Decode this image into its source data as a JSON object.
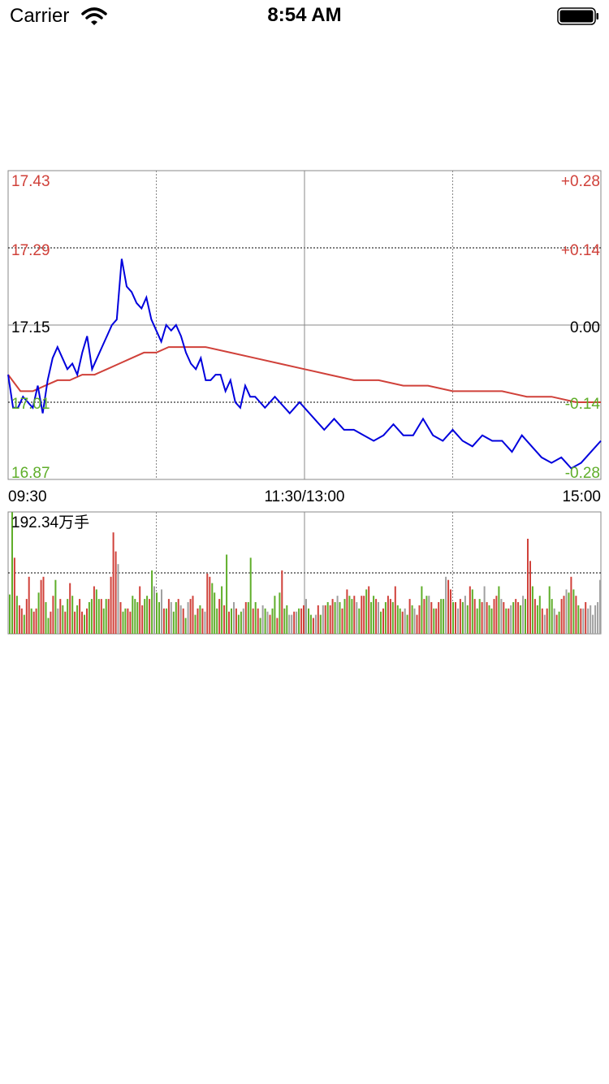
{
  "status_bar": {
    "carrier": "Carrier",
    "time": "8:54 AM",
    "wifi_icon": "wifi-icon",
    "battery_icon": "battery-icon"
  },
  "colors": {
    "price_line": "#0000dd",
    "avg_line": "#d0413a",
    "up": "#d0413a",
    "down": "#5fae2a",
    "flat": "#a0a0a0",
    "grid": "#888888",
    "neutral": "#000000"
  },
  "chart_data": [
    {
      "type": "line",
      "description_of_axes": "intraday price",
      "y_left_labels": [
        "17.43",
        "17.29",
        "17.15",
        "17.01",
        "16.87"
      ],
      "y_right_labels": [
        "+0.28",
        "+0.14",
        "0.00",
        "-0.14",
        "-0.28"
      ],
      "x_labels": [
        "09:30",
        "11:30/13:00",
        "15:00"
      ],
      "ylim": [
        16.87,
        17.43
      ],
      "reference_price": 17.15,
      "x_range": [
        0,
        240
      ],
      "series": [
        {
          "role": "price",
          "x": [
            0,
            2,
            4,
            6,
            8,
            10,
            12,
            14,
            16,
            18,
            20,
            22,
            24,
            26,
            28,
            30,
            32,
            34,
            36,
            38,
            40,
            42,
            44,
            46,
            48,
            50,
            52,
            54,
            56,
            58,
            60,
            62,
            64,
            66,
            68,
            70,
            72,
            74,
            76,
            78,
            80,
            82,
            84,
            86,
            88,
            90,
            92,
            94,
            96,
            98,
            100,
            102,
            104,
            106,
            108,
            110,
            112,
            114,
            116,
            118,
            120,
            124,
            128,
            132,
            136,
            140,
            144,
            148,
            152,
            156,
            160,
            164,
            168,
            172,
            176,
            180,
            184,
            188,
            192,
            196,
            200,
            204,
            208,
            212,
            216,
            220,
            224,
            228,
            232,
            236,
            240
          ],
          "values": [
            17.06,
            17.0,
            17.0,
            17.02,
            17.01,
            17.0,
            17.04,
            16.99,
            17.05,
            17.09,
            17.11,
            17.09,
            17.07,
            17.08,
            17.06,
            17.1,
            17.13,
            17.07,
            17.09,
            17.11,
            17.13,
            17.15,
            17.16,
            17.27,
            17.22,
            17.21,
            17.19,
            17.18,
            17.2,
            17.16,
            17.14,
            17.12,
            17.15,
            17.14,
            17.15,
            17.13,
            17.1,
            17.08,
            17.07,
            17.09,
            17.05,
            17.05,
            17.06,
            17.06,
            17.03,
            17.05,
            17.01,
            17.0,
            17.04,
            17.02,
            17.02,
            17.01,
            17.0,
            17.01,
            17.02,
            17.01,
            17.0,
            16.99,
            17.0,
            17.01,
            17.0,
            16.98,
            16.96,
            16.98,
            16.96,
            16.96,
            16.95,
            16.94,
            16.95,
            16.97,
            16.95,
            16.95,
            16.98,
            16.95,
            16.94,
            16.96,
            16.94,
            16.93,
            16.95,
            16.94,
            16.94,
            16.92,
            16.95,
            16.93,
            16.91,
            16.9,
            16.91,
            16.89,
            16.9,
            16.92,
            16.94
          ]
        },
        {
          "role": "average",
          "x": [
            0,
            5,
            10,
            15,
            20,
            25,
            30,
            35,
            40,
            45,
            50,
            55,
            60,
            65,
            70,
            75,
            80,
            90,
            100,
            110,
            120,
            130,
            140,
            150,
            160,
            170,
            180,
            190,
            200,
            210,
            220,
            230,
            240
          ],
          "values": [
            17.06,
            17.03,
            17.03,
            17.04,
            17.05,
            17.05,
            17.06,
            17.06,
            17.07,
            17.08,
            17.09,
            17.1,
            17.1,
            17.11,
            17.11,
            17.11,
            17.11,
            17.1,
            17.09,
            17.08,
            17.07,
            17.06,
            17.05,
            17.05,
            17.04,
            17.04,
            17.03,
            17.03,
            17.03,
            17.02,
            17.02,
            17.01,
            17.01
          ]
        }
      ]
    },
    {
      "type": "bar",
      "description_of_axes": "intraday volume",
      "max_label": "192.34万手",
      "ylim": [
        0,
        192.34
      ],
      "x_range": [
        0,
        240
      ],
      "values": [
        62,
        192,
        120,
        60,
        45,
        40,
        30,
        55,
        90,
        40,
        35,
        40,
        65,
        85,
        90,
        50,
        25,
        35,
        60,
        85,
        40,
        55,
        45,
        35,
        55,
        80,
        60,
        35,
        45,
        55,
        35,
        30,
        40,
        50,
        55,
        75,
        70,
        55,
        55,
        40,
        55,
        55,
        90,
        160,
        130,
        110,
        50,
        35,
        40,
        40,
        35,
        60,
        55,
        50,
        75,
        45,
        55,
        60,
        55,
        100,
        75,
        65,
        50,
        70,
        40,
        40,
        55,
        50,
        35,
        50,
        55,
        45,
        40,
        25,
        50,
        55,
        60,
        30,
        40,
        45,
        40,
        35,
        95,
        90,
        80,
        65,
        40,
        55,
        75,
        45,
        125,
        35,
        40,
        50,
        40,
        30,
        35,
        40,
        50,
        50,
        120,
        40,
        50,
        40,
        25,
        45,
        40,
        35,
        30,
        40,
        60,
        25,
        65,
        100,
        40,
        45,
        30,
        30,
        35,
        35,
        40,
        40,
        45,
        55,
        40,
        30,
        25,
        30,
        45,
        30,
        45,
        45,
        50,
        45,
        55,
        50,
        60,
        50,
        40,
        55,
        70,
        60,
        55,
        60,
        50,
        40,
        60,
        60,
        70,
        75,
        50,
        60,
        55,
        50,
        35,
        40,
        50,
        60,
        55,
        50,
        75,
        45,
        40,
        35,
        40,
        30,
        55,
        45,
        40,
        30,
        45,
        75,
        55,
        60,
        60,
        50,
        40,
        40,
        50,
        55,
        55,
        90,
        85,
        70,
        50,
        50,
        40,
        55,
        50,
        60,
        45,
        75,
        70,
        55,
        40,
        55,
        50,
        75,
        50,
        45,
        40,
        55,
        60,
        75,
        55,
        50,
        40,
        40,
        45,
        50,
        55,
        50,
        45,
        60,
        55,
        150,
        115,
        75,
        55,
        45,
        60,
        40,
        30,
        40,
        75,
        55,
        40,
        30,
        35,
        55,
        60,
        70,
        65,
        90,
        70,
        60,
        45,
        40,
        40,
        50,
        40,
        45,
        30,
        45,
        50,
        85
      ],
      "directions": [
        "down",
        "down",
        "up",
        "down",
        "up",
        "up",
        "down",
        "up",
        "up",
        "down",
        "up",
        "up",
        "down",
        "up",
        "up",
        "down",
        "down",
        "up",
        "up",
        "down",
        "flat",
        "up",
        "down",
        "up",
        "down",
        "up",
        "down",
        "up",
        "down",
        "up",
        "up",
        "down",
        "up",
        "down",
        "down",
        "up",
        "down",
        "down",
        "up",
        "down",
        "down",
        "up",
        "up",
        "up",
        "up",
        "flat",
        "up",
        "down",
        "down",
        "up",
        "up",
        "down",
        "down",
        "down",
        "up",
        "up",
        "down",
        "down",
        "up",
        "down",
        "flat",
        "down",
        "down",
        "flat",
        "up",
        "down",
        "up",
        "flat",
        "down",
        "down",
        "up",
        "flat",
        "up",
        "down",
        "flat",
        "up",
        "up",
        "down",
        "up",
        "down",
        "up",
        "flat",
        "up",
        "up",
        "down",
        "down",
        "down",
        "up",
        "down",
        "up",
        "down",
        "up",
        "down",
        "flat",
        "up",
        "down",
        "down",
        "flat",
        "up",
        "down",
        "down",
        "up",
        "down",
        "up",
        "down",
        "flat",
        "down",
        "flat",
        "up",
        "down",
        "down",
        "up",
        "down",
        "up",
        "down",
        "down",
        "flat",
        "flat",
        "up",
        "flat",
        "down",
        "up",
        "up",
        "flat",
        "down",
        "down",
        "up",
        "flat",
        "up",
        "down",
        "flat",
        "up",
        "down",
        "up",
        "up",
        "down",
        "flat",
        "down",
        "up",
        "down",
        "up",
        "down",
        "down",
        "up",
        "flat",
        "down",
        "up",
        "up",
        "down",
        "up",
        "down",
        "down",
        "up",
        "flat",
        "down",
        "up",
        "down",
        "up",
        "up",
        "down",
        "up",
        "down",
        "down",
        "up",
        "flat",
        "down",
        "up",
        "down",
        "flat",
        "up",
        "up",
        "down",
        "up",
        "down",
        "flat",
        "up",
        "down",
        "up",
        "up",
        "down",
        "down",
        "flat",
        "up",
        "up",
        "down",
        "up",
        "flat",
        "up",
        "down",
        "flat",
        "down",
        "up",
        "down",
        "up",
        "down",
        "down",
        "up",
        "flat",
        "up",
        "down",
        "down",
        "up",
        "up",
        "down",
        "flat",
        "up",
        "down",
        "up",
        "flat",
        "down",
        "up",
        "up",
        "down",
        "flat",
        "down",
        "up",
        "up",
        "down",
        "up",
        "down",
        "down",
        "up",
        "flat",
        "up",
        "down",
        "down",
        "flat",
        "up",
        "down",
        "up",
        "up",
        "flat",
        "down",
        "up",
        "down",
        "up",
        "down",
        "up",
        "flat",
        "up"
      ]
    }
  ]
}
